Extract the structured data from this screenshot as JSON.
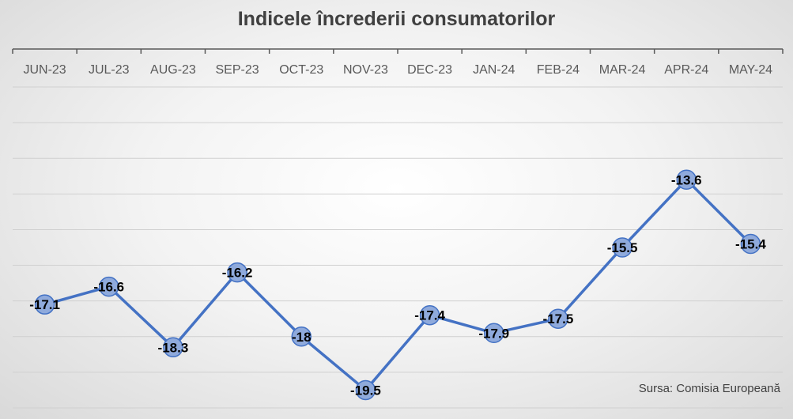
{
  "chart_data": {
    "type": "line",
    "title": "Indicele încrederii consumatorilor",
    "categories": [
      "JUN-23",
      "JUL-23",
      "AUG-23",
      "SEP-23",
      "OCT-23",
      "NOV-23",
      "DEC-23",
      "JAN-24",
      "FEB-24",
      "MAR-24",
      "APR-24",
      "MAY-24"
    ],
    "series": [
      {
        "values": [
          -17.1,
          -16.6,
          -18.3,
          -16.2,
          -18,
          -19.5,
          -17.4,
          -17.9,
          -17.5,
          -15.5,
          -13.6,
          -15.4
        ],
        "labels": [
          "-17.1",
          "-16.6",
          "-18.3",
          "-16.2",
          "-18",
          "-19.5",
          "-17.4",
          "-17.9",
          "-17.5",
          "-15.5",
          "-13.6",
          "-15.4"
        ]
      }
    ],
    "x_axis_position": "top",
    "ylim": [
      -20,
      -11
    ],
    "grid": true,
    "source": "Sursa: Comisia Europeană",
    "colors": {
      "line": "#4472C4",
      "marker_fill": "#8FAADC",
      "marker_stroke": "#4472C4",
      "grid": "#d0d0d0",
      "axis": "#595959"
    }
  }
}
